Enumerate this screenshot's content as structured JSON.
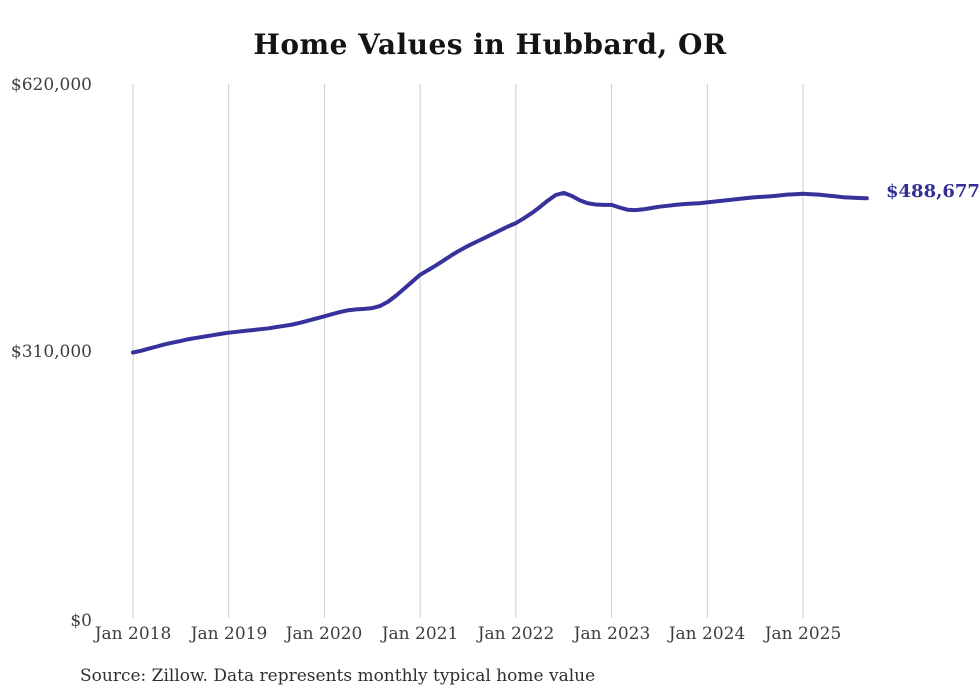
{
  "page": {
    "source_note": "Source: Zillow. Data represents monthly typical home value"
  },
  "chart_data": {
    "type": "line",
    "title": "Home Values in Hubbard, OR",
    "series_name": "Monthly typical home value",
    "end_label": "$488,677",
    "end_value": 488677,
    "ylim": [
      0,
      620000
    ],
    "y_ticks": [
      620000,
      310000,
      0
    ],
    "y_tick_labels": [
      "$620,000",
      "$310,000",
      "$0"
    ],
    "x_tick_labels": [
      "Jan 2018",
      "Jan 2019",
      "Jan 2020",
      "Jan 2021",
      "Jan 2022",
      "Jan 2023",
      "Jan 2024",
      "Jan 2025"
    ],
    "grid": "vertical-only",
    "legend": "none",
    "line_color": "#37329b",
    "gridline_color": "#cccccc",
    "label_color": "#3e3e3e",
    "months": [
      "2018-01",
      "2018-02",
      "2018-03",
      "2018-04",
      "2018-05",
      "2018-06",
      "2018-07",
      "2018-08",
      "2018-09",
      "2018-10",
      "2018-11",
      "2018-12",
      "2019-01",
      "2019-02",
      "2019-03",
      "2019-04",
      "2019-05",
      "2019-06",
      "2019-07",
      "2019-08",
      "2019-09",
      "2019-10",
      "2019-11",
      "2019-12",
      "2020-01",
      "2020-02",
      "2020-03",
      "2020-04",
      "2020-05",
      "2020-06",
      "2020-07",
      "2020-08",
      "2020-09",
      "2020-10",
      "2020-11",
      "2020-12",
      "2021-01",
      "2021-02",
      "2021-03",
      "2021-04",
      "2021-05",
      "2021-06",
      "2021-07",
      "2021-08",
      "2021-09",
      "2021-10",
      "2021-11",
      "2021-12",
      "2022-01",
      "2022-02",
      "2022-03",
      "2022-04",
      "2022-05",
      "2022-06",
      "2022-07",
      "2022-08",
      "2022-09",
      "2022-10",
      "2022-11",
      "2022-12",
      "2023-01",
      "2023-02",
      "2023-03",
      "2023-04",
      "2023-05",
      "2023-06",
      "2023-07",
      "2023-08",
      "2023-09",
      "2023-10",
      "2023-11",
      "2023-12",
      "2024-01",
      "2024-02",
      "2024-03",
      "2024-04",
      "2024-05",
      "2024-06",
      "2024-07",
      "2024-08",
      "2024-09",
      "2024-10",
      "2024-11",
      "2024-12",
      "2025-01",
      "2025-02",
      "2025-03",
      "2025-04",
      "2025-05",
      "2025-06",
      "2025-07",
      "2025-08",
      "2025-09"
    ],
    "values": [
      310000,
      312000,
      314500,
      317000,
      319500,
      321500,
      323500,
      325500,
      327000,
      328500,
      330000,
      331500,
      333000,
      334000,
      335000,
      336000,
      337000,
      338000,
      339500,
      341000,
      342500,
      344500,
      347000,
      349500,
      352000,
      354500,
      357000,
      359000,
      360000,
      360500,
      361500,
      364000,
      369000,
      376000,
      384000,
      392000,
      400000,
      405500,
      411000,
      417000,
      423000,
      428500,
      433500,
      438000,
      442500,
      447000,
      451500,
      456000,
      460000,
      465500,
      471500,
      478500,
      486000,
      492500,
      495000,
      491500,
      486500,
      483000,
      481500,
      481000,
      481000,
      478000,
      475500,
      475000,
      476000,
      477500,
      479000,
      480000,
      481000,
      482000,
      482500,
      483000,
      484000,
      485000,
      486000,
      487000,
      488000,
      489000,
      490000,
      490500,
      491000,
      492000,
      493000,
      493500,
      494000,
      493500,
      493000,
      492000,
      491000,
      490000,
      489500,
      489000,
      488677
    ]
  }
}
